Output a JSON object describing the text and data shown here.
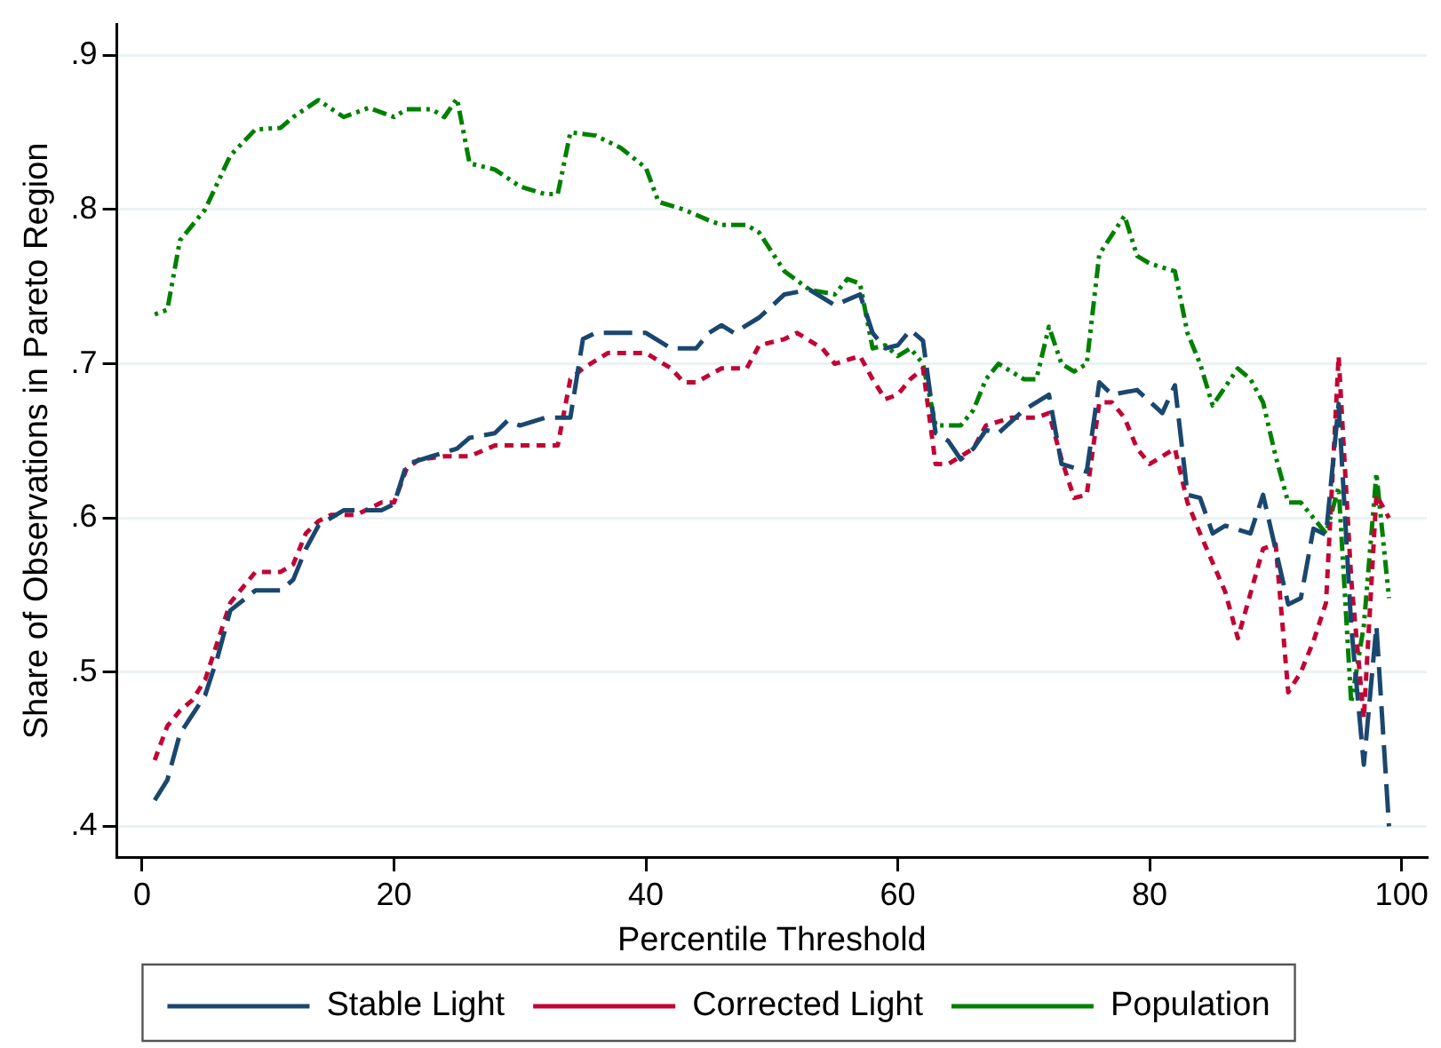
{
  "chart_data": {
    "type": "line",
    "xlabel": "Percentile Threshold",
    "ylabel": "Share of Observations in Pareto Region",
    "xlim": [
      -2,
      102
    ],
    "xticks": [
      0,
      20,
      40,
      60,
      80,
      100
    ],
    "ylim": [
      0.38,
      0.92
    ],
    "yticks": [
      {
        "value": 0.4,
        "label": ".4"
      },
      {
        "value": 0.5,
        "label": ".5"
      },
      {
        "value": 0.6,
        "label": ".6"
      },
      {
        "value": 0.7,
        "label": ".7"
      },
      {
        "value": 0.8,
        "label": ".8"
      },
      {
        "value": 0.9,
        "label": ".9"
      }
    ],
    "grid": "y",
    "legend": "bottom",
    "marker": "none",
    "series": [
      {
        "name": "Stable Light",
        "color": "#1a476f",
        "line_style": "dashed",
        "x": [
          1,
          2,
          3,
          5,
          6,
          7,
          9,
          11,
          12,
          13,
          14,
          15,
          16,
          19,
          20,
          21,
          23,
          25,
          26,
          28,
          29,
          30,
          32,
          34,
          35,
          36,
          40,
          42,
          44,
          45,
          46,
          47,
          49,
          51,
          53,
          55,
          57,
          58,
          59,
          60,
          61,
          62,
          63,
          64,
          65,
          66,
          67,
          68,
          70,
          72,
          73,
          75,
          76,
          77,
          79,
          81,
          82,
          83,
          84,
          85,
          86,
          88,
          89,
          91,
          92,
          93,
          94,
          95,
          96,
          97,
          98,
          99
        ],
        "values": [
          0.417,
          0.43,
          0.46,
          0.485,
          0.51,
          0.54,
          0.553,
          0.553,
          0.56,
          0.58,
          0.595,
          0.6,
          0.605,
          0.605,
          0.609,
          0.635,
          0.64,
          0.645,
          0.652,
          0.655,
          0.663,
          0.66,
          0.665,
          0.665,
          0.716,
          0.72,
          0.72,
          0.71,
          0.71,
          0.72,
          0.725,
          0.72,
          0.73,
          0.745,
          0.748,
          0.738,
          0.745,
          0.72,
          0.71,
          0.712,
          0.722,
          0.715,
          0.655,
          0.65,
          0.638,
          0.645,
          0.657,
          0.655,
          0.67,
          0.68,
          0.635,
          0.63,
          0.688,
          0.68,
          0.683,
          0.668,
          0.686,
          0.615,
          0.613,
          0.59,
          0.595,
          0.59,
          0.615,
          0.544,
          0.548,
          0.593,
          0.589,
          0.674,
          0.53,
          0.44,
          0.53,
          0.4
        ]
      },
      {
        "name": "Corrected Light",
        "color": "#c10534",
        "line_style": "dotted",
        "x": [
          1,
          2,
          3,
          4,
          5,
          6,
          7,
          8,
          9,
          11,
          12,
          13,
          14,
          15,
          17,
          19,
          20,
          21,
          22,
          24,
          26,
          28,
          30,
          33,
          34,
          35,
          37,
          40,
          42,
          43,
          44,
          46,
          48,
          49,
          51,
          52,
          54,
          55,
          57,
          58,
          59,
          60,
          61,
          62,
          63,
          64,
          66,
          67,
          69,
          71,
          72,
          73,
          74,
          75,
          76,
          77,
          78,
          79,
          80,
          81,
          82,
          83,
          84,
          86,
          87,
          89,
          90,
          91,
          92,
          93,
          94,
          95,
          96,
          97,
          98,
          99
        ],
        "values": [
          0.443,
          0.465,
          0.475,
          0.482,
          0.495,
          0.52,
          0.545,
          0.555,
          0.565,
          0.565,
          0.57,
          0.59,
          0.598,
          0.602,
          0.602,
          0.61,
          0.61,
          0.632,
          0.638,
          0.64,
          0.64,
          0.647,
          0.647,
          0.647,
          0.69,
          0.697,
          0.707,
          0.707,
          0.697,
          0.688,
          0.688,
          0.697,
          0.697,
          0.712,
          0.716,
          0.72,
          0.71,
          0.7,
          0.705,
          0.69,
          0.677,
          0.68,
          0.69,
          0.697,
          0.635,
          0.635,
          0.645,
          0.66,
          0.665,
          0.665,
          0.668,
          0.638,
          0.613,
          0.615,
          0.675,
          0.675,
          0.665,
          0.645,
          0.635,
          0.64,
          0.645,
          0.61,
          0.59,
          0.552,
          0.522,
          0.58,
          0.583,
          0.487,
          0.5,
          0.52,
          0.545,
          0.705,
          0.56,
          0.47,
          0.615,
          0.6
        ]
      },
      {
        "name": "Population",
        "color": "#008000",
        "line_style": "dashdot",
        "x": [
          1,
          2,
          3,
          5,
          7,
          9,
          11,
          12,
          14,
          16,
          18,
          20,
          21,
          23,
          24,
          25,
          26,
          28,
          30,
          32,
          33,
          34,
          36,
          38,
          40,
          41,
          43,
          45,
          46,
          48,
          49,
          51,
          53,
          55,
          56,
          57,
          58,
          59,
          60,
          61,
          62,
          63,
          65,
          66,
          67,
          68,
          70,
          71,
          72,
          73,
          74,
          75,
          76,
          78,
          79,
          80,
          82,
          83,
          84,
          85,
          86,
          87,
          88,
          89,
          90,
          91,
          92,
          93,
          94,
          95,
          96,
          97,
          98,
          99
        ],
        "values": [
          0.732,
          0.735,
          0.78,
          0.8,
          0.835,
          0.852,
          0.853,
          0.86,
          0.871,
          0.86,
          0.866,
          0.86,
          0.865,
          0.865,
          0.86,
          0.872,
          0.83,
          0.826,
          0.815,
          0.81,
          0.81,
          0.85,
          0.848,
          0.84,
          0.827,
          0.805,
          0.8,
          0.793,
          0.79,
          0.79,
          0.785,
          0.76,
          0.748,
          0.745,
          0.755,
          0.752,
          0.71,
          0.712,
          0.705,
          0.71,
          0.7,
          0.66,
          0.66,
          0.67,
          0.69,
          0.7,
          0.69,
          0.69,
          0.724,
          0.7,
          0.695,
          0.7,
          0.771,
          0.796,
          0.77,
          0.765,
          0.76,
          0.72,
          0.7,
          0.673,
          0.685,
          0.697,
          0.69,
          0.675,
          0.64,
          0.61,
          0.61,
          0.6,
          0.59,
          0.62,
          0.48,
          0.53,
          0.629,
          0.548
        ]
      }
    ]
  }
}
